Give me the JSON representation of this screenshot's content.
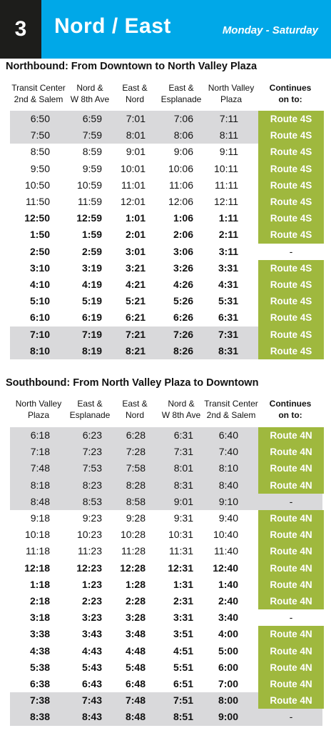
{
  "header": {
    "route_number": "3",
    "title": "Nord / East",
    "days": "Monday - Saturday"
  },
  "colors": {
    "header_blue": "#00a8e8",
    "route_box": "#1d1d1b",
    "continues_green": "#9fb83e",
    "band_gray": "#d9d9db"
  },
  "northbound": {
    "title": "Northbound: From Downtown to North Valley Plaza",
    "columns": [
      {
        "line1": "Transit Center",
        "line2": "2nd & Salem"
      },
      {
        "line1": "Nord &",
        "line2": "W 8th Ave"
      },
      {
        "line1": "East &",
        "line2": "Nord"
      },
      {
        "line1": "East &",
        "line2": "Esplanade"
      },
      {
        "line1": "North Valley",
        "line2": "Plaza"
      },
      {
        "line1": "Continues",
        "line2": "on to:"
      }
    ],
    "rows": [
      {
        "times": [
          "6:50",
          "6:59",
          "7:01",
          "7:06",
          "7:11"
        ],
        "continues": "Route 4S",
        "pm": false
      },
      {
        "times": [
          "7:50",
          "7:59",
          "8:01",
          "8:06",
          "8:11"
        ],
        "continues": "Route 4S",
        "pm": false
      },
      {
        "times": [
          "8:50",
          "8:59",
          "9:01",
          "9:06",
          "9:11"
        ],
        "continues": "Route 4S",
        "pm": false
      },
      {
        "times": [
          "9:50",
          "9:59",
          "10:01",
          "10:06",
          "10:11"
        ],
        "continues": "Route 4S",
        "pm": false
      },
      {
        "times": [
          "10:50",
          "10:59",
          "11:01",
          "11:06",
          "11:11"
        ],
        "continues": "Route 4S",
        "pm": false
      },
      {
        "times": [
          "11:50",
          "11:59",
          "12:01",
          "12:06",
          "12:11"
        ],
        "continues": "Route 4S",
        "pm": false
      },
      {
        "times": [
          "12:50",
          "12:59",
          "1:01",
          "1:06",
          "1:11"
        ],
        "continues": "Route 4S",
        "pm": true
      },
      {
        "times": [
          "1:50",
          "1:59",
          "2:01",
          "2:06",
          "2:11"
        ],
        "continues": "Route 4S",
        "pm": true
      },
      {
        "times": [
          "2:50",
          "2:59",
          "3:01",
          "3:06",
          "3:11"
        ],
        "continues": "-",
        "pm": true
      },
      {
        "times": [
          "3:10",
          "3:19",
          "3:21",
          "3:26",
          "3:31"
        ],
        "continues": "Route 4S",
        "pm": true
      },
      {
        "times": [
          "4:10",
          "4:19",
          "4:21",
          "4:26",
          "4:31"
        ],
        "continues": "Route 4S",
        "pm": true
      },
      {
        "times": [
          "5:10",
          "5:19",
          "5:21",
          "5:26",
          "5:31"
        ],
        "continues": "Route 4S",
        "pm": true
      },
      {
        "times": [
          "6:10",
          "6:19",
          "6:21",
          "6:26",
          "6:31"
        ],
        "continues": "Route 4S",
        "pm": true
      },
      {
        "times": [
          "7:10",
          "7:19",
          "7:21",
          "7:26",
          "7:31"
        ],
        "continues": "Route 4S",
        "pm": true
      },
      {
        "times": [
          "8:10",
          "8:19",
          "8:21",
          "8:26",
          "8:31"
        ],
        "continues": "Route 4S",
        "pm": true
      }
    ]
  },
  "southbound": {
    "title": "Southbound:  From North Valley Plaza to Downtown",
    "columns": [
      {
        "line1": "North Valley",
        "line2": "Plaza"
      },
      {
        "line1": "East &",
        "line2": "Esplanade"
      },
      {
        "line1": "East &",
        "line2": "Nord"
      },
      {
        "line1": "Nord &",
        "line2": "W 8th Ave"
      },
      {
        "line1": "Transit Center",
        "line2": "2nd & Salem"
      },
      {
        "line1": "Continues",
        "line2": "on to:"
      }
    ],
    "rows": [
      {
        "times": [
          "6:18",
          "6:23",
          "6:28",
          "6:31",
          "6:40"
        ],
        "continues": "Route 4N",
        "pm": false
      },
      {
        "times": [
          "7:18",
          "7:23",
          "7:28",
          "7:31",
          "7:40"
        ],
        "continues": "Route 4N",
        "pm": false
      },
      {
        "times": [
          "7:48",
          "7:53",
          "7:58",
          "8:01",
          "8:10"
        ],
        "continues": "Route 4N",
        "pm": false
      },
      {
        "times": [
          "8:18",
          "8:23",
          "8:28",
          "8:31",
          "8:40"
        ],
        "continues": "Route 4N",
        "pm": false
      },
      {
        "times": [
          "8:48",
          "8:53",
          "8:58",
          "9:01",
          "9:10"
        ],
        "continues": "-",
        "pm": false
      },
      {
        "times": [
          "9:18",
          "9:23",
          "9:28",
          "9:31",
          "9:40"
        ],
        "continues": "Route 4N",
        "pm": false
      },
      {
        "times": [
          "10:18",
          "10:23",
          "10:28",
          "10:31",
          "10:40"
        ],
        "continues": "Route 4N",
        "pm": false
      },
      {
        "times": [
          "11:18",
          "11:23",
          "11:28",
          "11:31",
          "11:40"
        ],
        "continues": "Route 4N",
        "pm": false
      },
      {
        "times": [
          "12:18",
          "12:23",
          "12:28",
          "12:31",
          "12:40"
        ],
        "continues": "Route 4N",
        "pm": true
      },
      {
        "times": [
          "1:18",
          "1:23",
          "1:28",
          "1:31",
          "1:40"
        ],
        "continues": "Route 4N",
        "pm": true
      },
      {
        "times": [
          "2:18",
          "2:23",
          "2:28",
          "2:31",
          "2:40"
        ],
        "continues": "Route 4N",
        "pm": true
      },
      {
        "times": [
          "3:18",
          "3:23",
          "3:28",
          "3:31",
          "3:40"
        ],
        "continues": "-",
        "pm": true
      },
      {
        "times": [
          "3:38",
          "3:43",
          "3:48",
          "3:51",
          "4:00"
        ],
        "continues": "Route 4N",
        "pm": true
      },
      {
        "times": [
          "4:38",
          "4:43",
          "4:48",
          "4:51",
          "5:00"
        ],
        "continues": "Route 4N",
        "pm": true
      },
      {
        "times": [
          "5:38",
          "5:43",
          "5:48",
          "5:51",
          "6:00"
        ],
        "continues": "Route 4N",
        "pm": true
      },
      {
        "times": [
          "6:38",
          "6:43",
          "6:48",
          "6:51",
          "7:00"
        ],
        "continues": "Route 4N",
        "pm": true
      },
      {
        "times": [
          "7:38",
          "7:43",
          "7:48",
          "7:51",
          "8:00"
        ],
        "continues": "Route 4N",
        "pm": true
      },
      {
        "times": [
          "8:38",
          "8:43",
          "8:48",
          "8:51",
          "9:00"
        ],
        "continues": "-",
        "pm": true
      }
    ]
  }
}
